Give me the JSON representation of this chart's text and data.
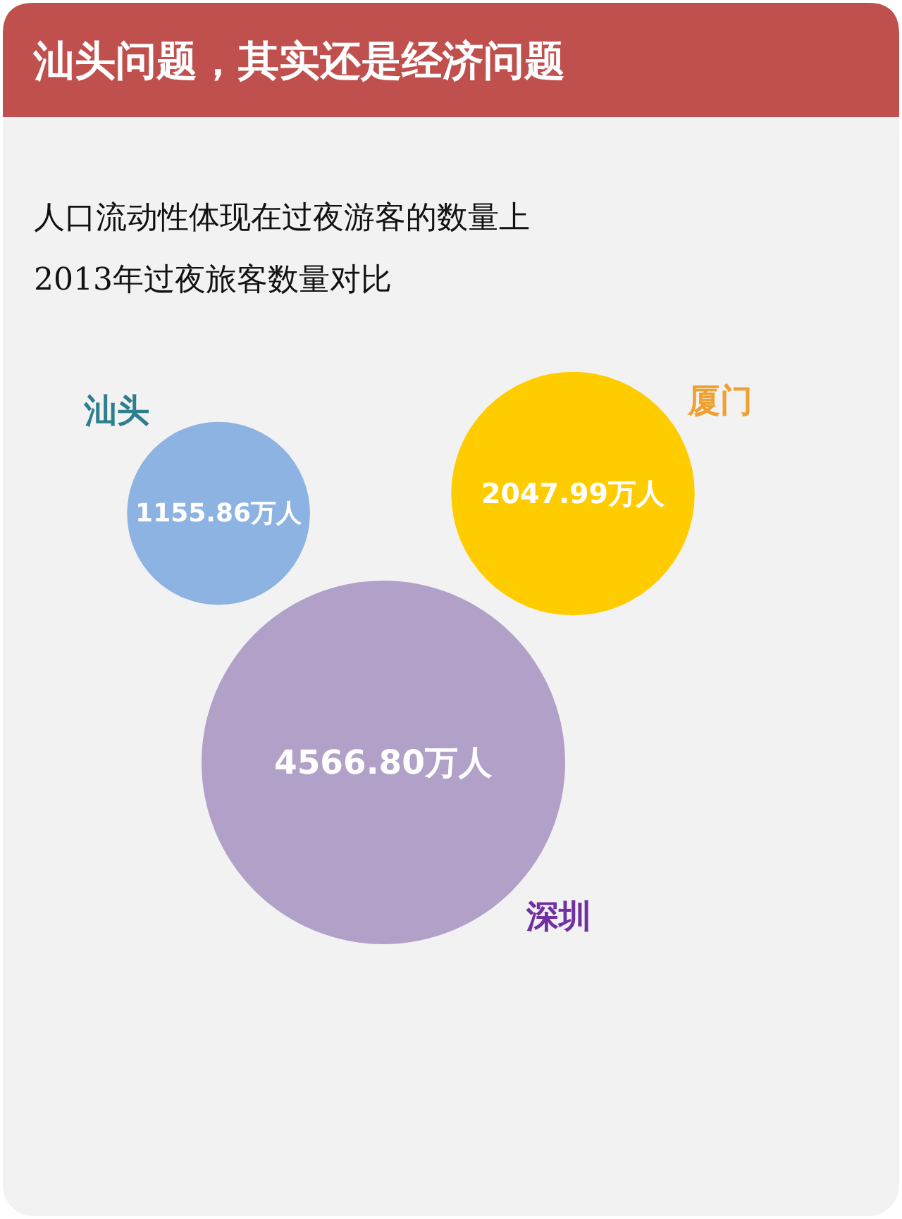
{
  "chart_data": {
    "type": "other",
    "title": "汕头问题，其实还是经济问题",
    "subtitle": "人口流动性体现在过夜游客的数量上\n2013年过夜旅客数量对比",
    "categories": [
      "汕头",
      "厦门",
      "深圳"
    ],
    "values": [
      1155.86,
      2047.99,
      4566.8
    ],
    "value_labels": [
      "1155.86万人",
      "2047.99万人",
      "4566.80万人"
    ],
    "colors": [
      "#8db3e2",
      "#ffcc00",
      "#b1a0c7"
    ]
  }
}
